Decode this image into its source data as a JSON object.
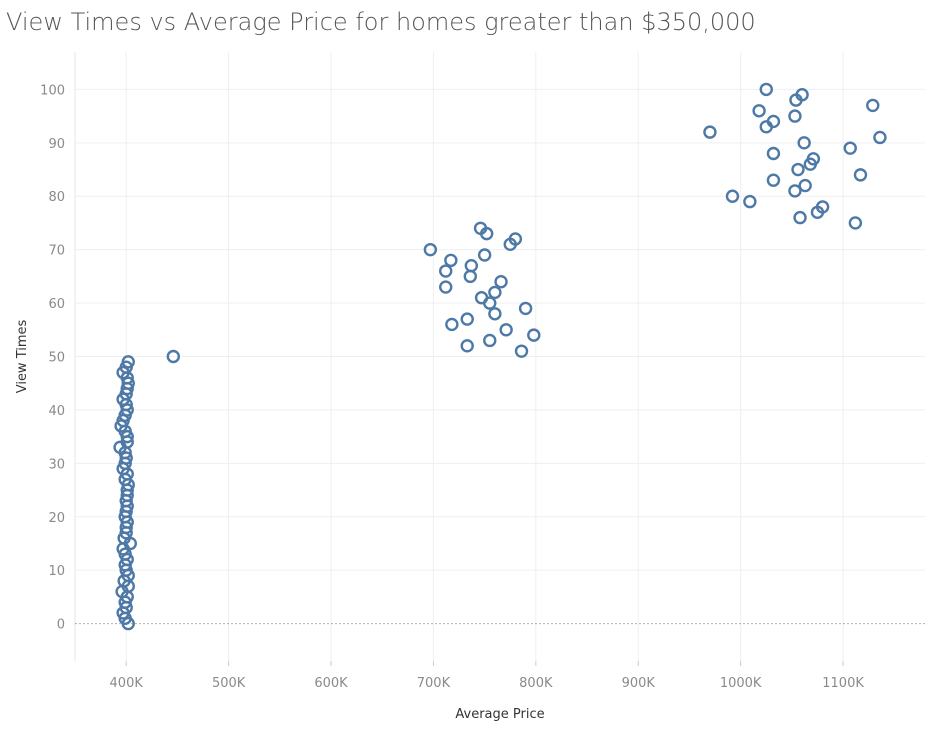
{
  "chart_data": {
    "type": "scatter",
    "title": "View Times vs Average Price for homes greater than $350,000",
    "xlabel": "Average Price",
    "ylabel": "View Times",
    "xlim": [
      350000,
      1180000
    ],
    "ylim": [
      -7,
      107
    ],
    "x_ticks": [
      400000,
      500000,
      600000,
      700000,
      800000,
      900000,
      1000000,
      1100000
    ],
    "x_tick_labels": [
      "400K",
      "500K",
      "600K",
      "700K",
      "800K",
      "900K",
      "1000K",
      "1100K"
    ],
    "y_ticks": [
      0,
      10,
      20,
      30,
      40,
      50,
      60,
      70,
      80,
      90,
      100
    ],
    "y_tick_labels": [
      "0",
      "10",
      "20",
      "30",
      "40",
      "50",
      "60",
      "70",
      "80",
      "90",
      "100"
    ],
    "grid": true,
    "marker": "open-circle",
    "colors": {
      "marker": "#4e79a7",
      "grid": "#efefef",
      "zero_line": "#b0b0b0",
      "title": "#555555",
      "tick": "#8a8a8a"
    },
    "points": [
      {
        "x": 402000,
        "y": 0
      },
      {
        "x": 399000,
        "y": 1
      },
      {
        "x": 397000,
        "y": 2
      },
      {
        "x": 400000,
        "y": 3
      },
      {
        "x": 399000,
        "y": 4
      },
      {
        "x": 401000,
        "y": 5
      },
      {
        "x": 396000,
        "y": 6
      },
      {
        "x": 402000,
        "y": 7
      },
      {
        "x": 398000,
        "y": 8
      },
      {
        "x": 402000,
        "y": 9
      },
      {
        "x": 400000,
        "y": 10
      },
      {
        "x": 399000,
        "y": 11
      },
      {
        "x": 401000,
        "y": 12
      },
      {
        "x": 399000,
        "y": 13
      },
      {
        "x": 397000,
        "y": 14
      },
      {
        "x": 404000,
        "y": 15
      },
      {
        "x": 398000,
        "y": 16
      },
      {
        "x": 400000,
        "y": 17
      },
      {
        "x": 400000,
        "y": 18
      },
      {
        "x": 401000,
        "y": 19
      },
      {
        "x": 399000,
        "y": 20
      },
      {
        "x": 400000,
        "y": 21
      },
      {
        "x": 401000,
        "y": 22
      },
      {
        "x": 400000,
        "y": 23
      },
      {
        "x": 401000,
        "y": 24
      },
      {
        "x": 401000,
        "y": 25
      },
      {
        "x": 402000,
        "y": 26
      },
      {
        "x": 399000,
        "y": 27
      },
      {
        "x": 401000,
        "y": 28
      },
      {
        "x": 397000,
        "y": 29
      },
      {
        "x": 399000,
        "y": 30
      },
      {
        "x": 400000,
        "y": 31
      },
      {
        "x": 399000,
        "y": 32
      },
      {
        "x": 394000,
        "y": 33
      },
      {
        "x": 401000,
        "y": 34
      },
      {
        "x": 401000,
        "y": 35
      },
      {
        "x": 399000,
        "y": 36
      },
      {
        "x": 395000,
        "y": 37
      },
      {
        "x": 397000,
        "y": 38
      },
      {
        "x": 399000,
        "y": 39
      },
      {
        "x": 401000,
        "y": 40
      },
      {
        "x": 400000,
        "y": 41
      },
      {
        "x": 397000,
        "y": 42
      },
      {
        "x": 400000,
        "y": 43
      },
      {
        "x": 401000,
        "y": 44
      },
      {
        "x": 402000,
        "y": 45
      },
      {
        "x": 401000,
        "y": 46
      },
      {
        "x": 397000,
        "y": 47
      },
      {
        "x": 400000,
        "y": 48
      },
      {
        "x": 402000,
        "y": 49
      },
      {
        "x": 446000,
        "y": 50
      },
      {
        "x": 697000,
        "y": 70
      },
      {
        "x": 746000,
        "y": 74
      },
      {
        "x": 752000,
        "y": 73
      },
      {
        "x": 780000,
        "y": 72
      },
      {
        "x": 775000,
        "y": 71
      },
      {
        "x": 750000,
        "y": 69
      },
      {
        "x": 717000,
        "y": 68
      },
      {
        "x": 737000,
        "y": 67
      },
      {
        "x": 712000,
        "y": 66
      },
      {
        "x": 736000,
        "y": 65
      },
      {
        "x": 766000,
        "y": 64
      },
      {
        "x": 712000,
        "y": 63
      },
      {
        "x": 760000,
        "y": 62
      },
      {
        "x": 747000,
        "y": 61
      },
      {
        "x": 755000,
        "y": 60
      },
      {
        "x": 790000,
        "y": 59
      },
      {
        "x": 760000,
        "y": 58
      },
      {
        "x": 733000,
        "y": 57
      },
      {
        "x": 718000,
        "y": 56
      },
      {
        "x": 771000,
        "y": 55
      },
      {
        "x": 798000,
        "y": 54
      },
      {
        "x": 755000,
        "y": 53
      },
      {
        "x": 733000,
        "y": 52
      },
      {
        "x": 786000,
        "y": 51
      },
      {
        "x": 1025000,
        "y": 100
      },
      {
        "x": 1060000,
        "y": 99
      },
      {
        "x": 1054000,
        "y": 98
      },
      {
        "x": 1129000,
        "y": 97
      },
      {
        "x": 1018000,
        "y": 96
      },
      {
        "x": 1053000,
        "y": 95
      },
      {
        "x": 1032000,
        "y": 94
      },
      {
        "x": 1025000,
        "y": 93
      },
      {
        "x": 970000,
        "y": 92
      },
      {
        "x": 1136000,
        "y": 91
      },
      {
        "x": 1062000,
        "y": 90
      },
      {
        "x": 1107000,
        "y": 89
      },
      {
        "x": 1032000,
        "y": 88
      },
      {
        "x": 1071000,
        "y": 87
      },
      {
        "x": 1068000,
        "y": 86
      },
      {
        "x": 1056000,
        "y": 85
      },
      {
        "x": 1117000,
        "y": 84
      },
      {
        "x": 1032000,
        "y": 83
      },
      {
        "x": 1063000,
        "y": 82
      },
      {
        "x": 1053000,
        "y": 81
      },
      {
        "x": 992000,
        "y": 80
      },
      {
        "x": 1009000,
        "y": 79
      },
      {
        "x": 1080000,
        "y": 78
      },
      {
        "x": 1075000,
        "y": 77
      },
      {
        "x": 1058000,
        "y": 76
      },
      {
        "x": 1112000,
        "y": 75
      }
    ]
  }
}
